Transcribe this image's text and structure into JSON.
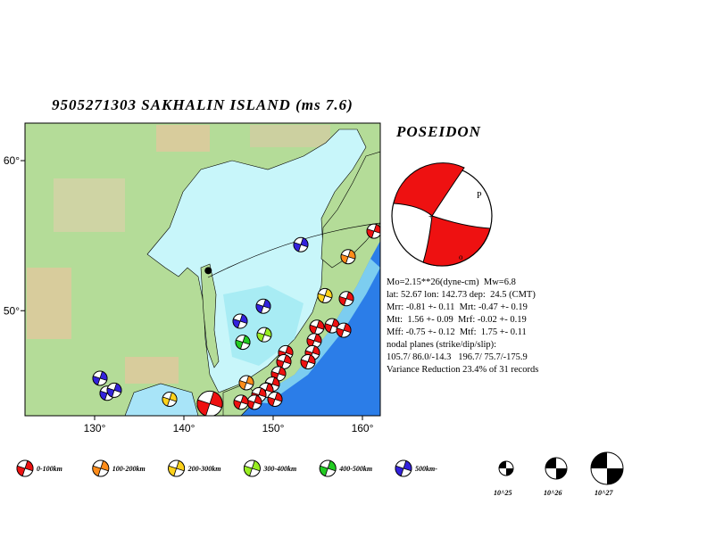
{
  "chart_data": {
    "type": "map",
    "title": "9505271303  SAKHALIN ISLAND (ms 7.6)",
    "source": "POSEIDON",
    "xlim": [
      122.2,
      162
    ],
    "ylim": [
      43,
      62.5
    ],
    "xticks": [
      {
        "value": 130,
        "label": "130°"
      },
      {
        "value": 140,
        "label": "140°"
      },
      {
        "value": 150,
        "label": "150°"
      },
      {
        "value": 160,
        "label": "160°"
      }
    ],
    "yticks": [
      {
        "value": 50,
        "label": "50°"
      },
      {
        "value": 60,
        "label": "60°"
      }
    ],
    "epicenter": {
      "lon": 142.73,
      "lat": 52.67
    },
    "info": [
      "Mo=2.15**26(dyne-cm)  Mw=6.8",
      "lat: 52.67 lon: 142.73 dep:  24.5 (CMT)",
      "Mrr: -0.81 +- 0.11  Mrt: -0.47 +- 0.19",
      "Mtt:  1.56 +- 0.09  Mrf: -0.02 +- 0.19",
      "Mff: -0.75 +- 0.12  Mtf:  1.75 +- 0.11",
      "nodal planes (strike/dip/slip):",
      "105.7/ 86.0/-14.3   196.7/ 75.7/-175.9",
      "Variance Reduction 23.4% of 31 records"
    ],
    "depth_classes": [
      {
        "name": "0-100km",
        "color": "#ee1111"
      },
      {
        "name": "100-200km",
        "color": "#ff8c1a"
      },
      {
        "name": "200-300km",
        "color": "#ffd21a"
      },
      {
        "name": "300-400km",
        "color": "#99ee22"
      },
      {
        "name": "400-500km",
        "color": "#22cc22"
      },
      {
        "name": "500km-",
        "color": "#3322dd"
      }
    ],
    "moment_scale": [
      {
        "value": 25,
        "label": "10^25"
      },
      {
        "value": 26,
        "label": "10^26"
      },
      {
        "value": 27,
        "label": "10^27"
      }
    ],
    "events": {
      "lon": [
        161.3,
        153.1,
        158.4,
        155.8,
        158.2,
        148.9,
        146.3,
        149.0,
        146.6,
        154.9,
        156.6,
        157.9,
        154.6,
        154.4,
        153.9,
        151.4,
        151.2,
        150.6,
        149.9,
        149.2,
        148.4,
        147.9,
        146.4,
        150.2,
        147.0,
        130.6,
        131.4,
        132.2,
        138.4,
        142.9
      ],
      "lat": [
        55.3,
        54.4,
        53.6,
        51.0,
        50.8,
        50.3,
        49.3,
        48.4,
        47.9,
        48.9,
        49.0,
        48.7,
        48.0,
        47.2,
        46.6,
        47.2,
        46.6,
        45.8,
        45.1,
        44.7,
        44.4,
        43.9,
        43.9,
        44.1,
        45.2,
        45.5,
        44.5,
        44.7,
        44.1,
        43.8
      ],
      "depth_class": [
        0,
        5,
        1,
        2,
        0,
        5,
        5,
        3,
        4,
        0,
        0,
        0,
        0,
        0,
        0,
        0,
        0,
        0,
        0,
        0,
        0,
        0,
        0,
        0,
        1,
        5,
        5,
        5,
        2,
        0
      ],
      "moment_exp": [
        25,
        25,
        25,
        25,
        25,
        25,
        25,
        25,
        25,
        25,
        25,
        25,
        25,
        25,
        25,
        25,
        25,
        25,
        25,
        25,
        25,
        25,
        25,
        25,
        25,
        25,
        25,
        25,
        25,
        26.4
      ]
    }
  }
}
